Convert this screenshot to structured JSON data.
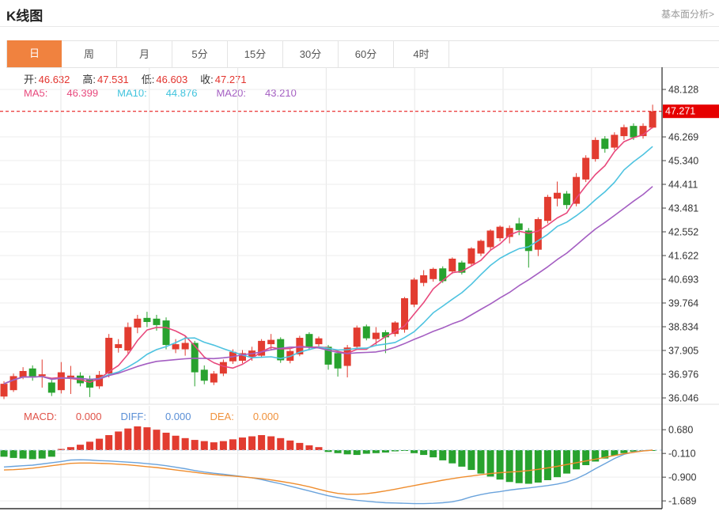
{
  "header": {
    "title": "K线图",
    "link": "基本面分析>"
  },
  "tabs": {
    "active_index": 0,
    "items": [
      {
        "key": "day",
        "label": "日"
      },
      {
        "key": "week",
        "label": "周"
      },
      {
        "key": "month",
        "label": "月"
      },
      {
        "key": "5min",
        "label": "5分"
      },
      {
        "key": "15min",
        "label": "15分"
      },
      {
        "key": "30min",
        "label": "30分"
      },
      {
        "key": "60min",
        "label": "60分"
      },
      {
        "key": "4hour",
        "label": "4时"
      }
    ]
  },
  "ohlc_row": {
    "items": [
      {
        "label": "开:",
        "value": "46.632"
      },
      {
        "label": "高:",
        "value": "47.531"
      },
      {
        "label": "低:",
        "value": "46.603"
      },
      {
        "label": "收:",
        "value": "47.271"
      }
    ]
  },
  "ma_row": {
    "items": [
      {
        "label": "MA5:",
        "value": "46.399",
        "color": "#e8487c"
      },
      {
        "label": "MA10:",
        "value": "44.876",
        "color": "#3fc3dd"
      },
      {
        "label": "MA20:",
        "value": "43.210",
        "color": "#a45ec2"
      }
    ]
  },
  "macd_row": {
    "items": [
      {
        "label": "MACD:",
        "value": "0.000",
        "color": "#e05248"
      },
      {
        "label": "DIFF:",
        "value": "0.000",
        "color": "#5a8fd6"
      },
      {
        "label": "DEA:",
        "value": "0.000",
        "color": "#f0923c"
      }
    ]
  },
  "colors": {
    "up": "#e23c30",
    "down": "#28a22e",
    "ma5": "#e8487c",
    "ma10": "#4ec3e0",
    "ma20": "#a45ec2",
    "diff_line": "#6aa3dc",
    "dea_line": "#ef8d2e",
    "grid": "#ededed",
    "vgrid": "#e6e6e6",
    "axis": "#444444",
    "panel_bottom": "#333333",
    "price_line": "#e60000",
    "price_tag_bg": "#e60000",
    "price_tag_text": "#ffffff",
    "axis_label": "#333333",
    "zero_dash": "#aecde6",
    "tab_active_bg": "#f0823f"
  },
  "chart_data": {
    "type": "candlestick",
    "panels": [
      "price",
      "macd"
    ],
    "title": "K线图",
    "price_axis": {
      "tick_labels": [
        "48.128",
        "46.269",
        "45.340",
        "44.411",
        "43.481",
        "42.552",
        "41.622",
        "40.693",
        "39.764",
        "38.834",
        "37.905",
        "36.976",
        "36.046"
      ],
      "tick_values": [
        48.128,
        46.269,
        45.34,
        44.411,
        43.481,
        42.552,
        41.622,
        40.693,
        39.764,
        38.834,
        37.905,
        36.976,
        36.046
      ],
      "current_price": 47.271,
      "current_price_label": "47.271",
      "range": [
        36.046,
        48.128
      ]
    },
    "ohlc_current": {
      "open": 46.632,
      "high": 47.531,
      "low": 46.603,
      "close": 47.271
    },
    "ma_current": {
      "ma5": 46.399,
      "ma10": 44.876,
      "ma20": 43.21
    },
    "candles": [
      [
        36.1,
        36.7,
        36.0,
        36.6
      ],
      [
        36.35,
        37.0,
        36.28,
        36.9
      ],
      [
        36.85,
        37.25,
        36.78,
        37.1
      ],
      [
        37.2,
        37.32,
        36.72,
        36.85
      ],
      [
        36.9,
        37.55,
        36.45,
        36.97
      ],
      [
        36.65,
        36.75,
        36.12,
        36.25
      ],
      [
        36.35,
        37.45,
        36.22,
        37.05
      ],
      [
        36.85,
        37.3,
        36.2,
        36.92
      ],
      [
        36.92,
        37.05,
        36.5,
        36.62
      ],
      [
        36.8,
        36.92,
        36.08,
        36.45
      ],
      [
        36.5,
        37.1,
        36.4,
        36.95
      ],
      [
        37.0,
        38.55,
        36.85,
        38.4
      ],
      [
        38.0,
        38.35,
        37.82,
        38.15
      ],
      [
        37.9,
        39.0,
        37.78,
        38.82
      ],
      [
        38.8,
        39.3,
        38.58,
        39.15
      ],
      [
        39.18,
        39.42,
        38.82,
        39.02
      ],
      [
        39.15,
        39.3,
        38.68,
        38.9
      ],
      [
        39.08,
        39.2,
        37.95,
        38.12
      ],
      [
        37.95,
        38.35,
        37.8,
        38.15
      ],
      [
        37.95,
        38.45,
        37.7,
        38.2
      ],
      [
        38.2,
        38.28,
        36.5,
        37.05
      ],
      [
        37.15,
        37.32,
        36.58,
        36.72
      ],
      [
        36.65,
        37.1,
        36.55,
        37.0
      ],
      [
        37.0,
        37.55,
        36.9,
        37.45
      ],
      [
        37.48,
        37.95,
        37.38,
        37.85
      ],
      [
        37.5,
        37.92,
        37.4,
        37.8
      ],
      [
        37.65,
        38.05,
        37.5,
        37.9
      ],
      [
        37.7,
        38.35,
        37.62,
        38.28
      ],
      [
        38.15,
        38.55,
        37.9,
        38.32
      ],
      [
        38.35,
        38.42,
        37.42,
        37.52
      ],
      [
        37.5,
        37.95,
        37.4,
        37.88
      ],
      [
        37.75,
        38.48,
        37.68,
        38.4
      ],
      [
        38.55,
        38.62,
        37.95,
        38.02
      ],
      [
        38.15,
        38.45,
        38.02,
        38.38
      ],
      [
        38.05,
        38.12,
        37.15,
        37.35
      ],
      [
        37.8,
        37.92,
        36.88,
        37.2
      ],
      [
        37.3,
        38.12,
        36.85,
        38.02
      ],
      [
        38.05,
        38.88,
        37.95,
        38.8
      ],
      [
        38.85,
        38.92,
        38.3,
        38.38
      ],
      [
        38.35,
        38.82,
        38.1,
        38.6
      ],
      [
        38.62,
        38.7,
        37.8,
        38.42
      ],
      [
        38.55,
        39.05,
        38.45,
        39.0
      ],
      [
        38.72,
        40.0,
        38.6,
        39.95
      ],
      [
        39.7,
        40.75,
        39.6,
        40.68
      ],
      [
        40.55,
        41.05,
        40.42,
        40.85
      ],
      [
        40.7,
        41.15,
        40.6,
        41.1
      ],
      [
        41.12,
        41.2,
        40.55,
        40.62
      ],
      [
        41.0,
        41.55,
        40.9,
        41.5
      ],
      [
        41.35,
        41.42,
        40.88,
        40.95
      ],
      [
        41.3,
        41.95,
        41.2,
        41.9
      ],
      [
        41.7,
        42.25,
        41.6,
        42.2
      ],
      [
        41.95,
        42.65,
        41.85,
        42.6
      ],
      [
        42.3,
        42.8,
        42.18,
        42.75
      ],
      [
        42.35,
        42.8,
        42.1,
        42.7
      ],
      [
        42.88,
        43.1,
        42.42,
        42.62
      ],
      [
        42.6,
        42.7,
        41.15,
        41.8
      ],
      [
        41.85,
        43.12,
        41.6,
        43.05
      ],
      [
        42.98,
        44.0,
        42.88,
        43.92
      ],
      [
        43.85,
        44.52,
        43.55,
        44.08
      ],
      [
        44.05,
        44.15,
        43.45,
        43.6
      ],
      [
        43.65,
        44.85,
        43.55,
        44.7
      ],
      [
        44.6,
        45.55,
        44.5,
        45.45
      ],
      [
        45.4,
        46.25,
        45.3,
        46.15
      ],
      [
        46.2,
        46.3,
        45.65,
        45.8
      ],
      [
        45.85,
        46.45,
        45.75,
        46.35
      ],
      [
        46.3,
        46.75,
        46.15,
        46.65
      ],
      [
        46.7,
        46.8,
        46.15,
        46.25
      ],
      [
        46.3,
        46.8,
        46.2,
        46.7
      ],
      [
        46.632,
        47.531,
        46.603,
        47.271
      ]
    ],
    "macd": {
      "axis_tick_labels": [
        "0.680",
        "-0.110",
        "-0.900",
        "-1.689"
      ],
      "axis_tick_values": [
        0.68,
        -0.11,
        -0.9,
        -1.689
      ],
      "current": {
        "macd": 0.0,
        "diff": 0.0,
        "dea": 0.0
      },
      "hist": [
        -0.22,
        -0.26,
        -0.28,
        -0.3,
        -0.28,
        -0.22,
        0.04,
        0.1,
        0.18,
        0.28,
        0.38,
        0.5,
        0.62,
        0.72,
        0.79,
        0.76,
        0.68,
        0.58,
        0.48,
        0.4,
        0.34,
        0.3,
        0.26,
        0.3,
        0.36,
        0.42,
        0.46,
        0.5,
        0.46,
        0.4,
        0.32,
        0.24,
        0.16,
        0.1,
        -0.06,
        -0.1,
        -0.14,
        -0.16,
        -0.12,
        -0.1,
        -0.08,
        -0.04,
        -0.02,
        -0.1,
        -0.16,
        -0.24,
        -0.34,
        -0.44,
        -0.55,
        -0.66,
        -0.78,
        -0.88,
        -0.98,
        -1.06,
        -1.1,
        -1.12,
        -1.08,
        -1.0,
        -0.9,
        -0.78,
        -0.64,
        -0.5,
        -0.38,
        -0.28,
        -0.18,
        -0.1,
        -0.05,
        -0.02,
        -0.01
      ],
      "diff": [
        -0.56,
        -0.54,
        -0.52,
        -0.5,
        -0.46,
        -0.42,
        -0.38,
        -0.33,
        -0.32,
        -0.33,
        -0.35,
        -0.36,
        -0.38,
        -0.4,
        -0.42,
        -0.45,
        -0.48,
        -0.52,
        -0.57,
        -0.62,
        -0.68,
        -0.73,
        -0.77,
        -0.8,
        -0.84,
        -0.88,
        -0.92,
        -0.98,
        -1.05,
        -1.12,
        -1.2,
        -1.28,
        -1.36,
        -1.44,
        -1.52,
        -1.58,
        -1.63,
        -1.67,
        -1.7,
        -1.73,
        -1.75,
        -1.76,
        -1.77,
        -1.78,
        -1.78,
        -1.77,
        -1.75,
        -1.72,
        -1.65,
        -1.55,
        -1.48,
        -1.42,
        -1.38,
        -1.33,
        -1.29,
        -1.26,
        -1.22,
        -1.18,
        -1.13,
        -1.06,
        -0.95,
        -0.8,
        -0.62,
        -0.45,
        -0.28,
        -0.14,
        -0.06,
        -0.02,
        0.0
      ],
      "dea": [
        -0.66,
        -0.65,
        -0.63,
        -0.6,
        -0.56,
        -0.52,
        -0.48,
        -0.44,
        -0.43,
        -0.43,
        -0.44,
        -0.45,
        -0.47,
        -0.49,
        -0.52,
        -0.55,
        -0.58,
        -0.62,
        -0.66,
        -0.7,
        -0.74,
        -0.78,
        -0.81,
        -0.84,
        -0.86,
        -0.89,
        -0.92,
        -0.95,
        -0.99,
        -1.04,
        -1.09,
        -1.15,
        -1.22,
        -1.3,
        -1.38,
        -1.44,
        -1.47,
        -1.47,
        -1.45,
        -1.41,
        -1.36,
        -1.3,
        -1.24,
        -1.18,
        -1.12,
        -1.06,
        -1.0,
        -0.95,
        -0.9,
        -0.86,
        -0.82,
        -0.78,
        -0.75,
        -0.73,
        -0.71,
        -0.68,
        -0.64,
        -0.59,
        -0.54,
        -0.48,
        -0.42,
        -0.36,
        -0.3,
        -0.24,
        -0.18,
        -0.12,
        -0.07,
        -0.03,
        0.0
      ]
    }
  }
}
